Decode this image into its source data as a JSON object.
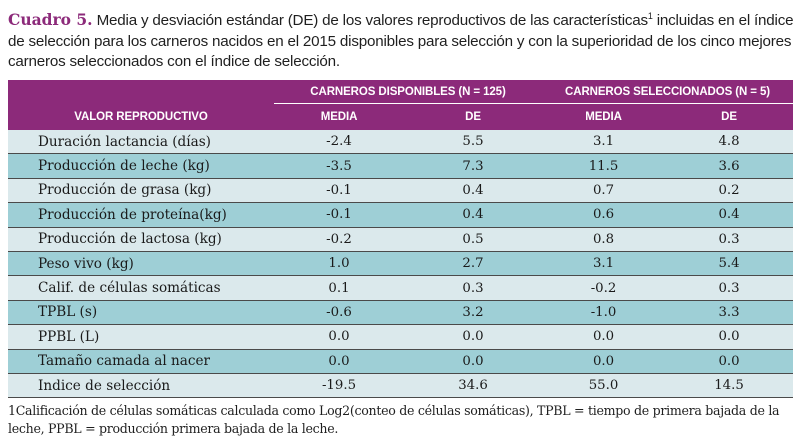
{
  "caption": {
    "label": "Cuadro 5.",
    "text_part1": " Media y desviación estándar (DE) de los valores reproductivos de las características",
    "superscript": "1",
    "text_part2": " incluidas en el índice de selección para los carneros nacidos en el 2015 disponibles para selección y con la superioridad de los cinco mejores carneros seleccionados con el índice de selección."
  },
  "table": {
    "group_headers": [
      "CARNEROS DISPONIBLES (N = 125)",
      "CARNEROS SELECCIONADOS (N = 5)"
    ],
    "column_headers": [
      "VALOR REPRODUCTIVO",
      "MEDIA",
      "DE",
      "MEDIA",
      "DE"
    ],
    "rows": [
      {
        "name": "Duración  lactancia (días)",
        "values": [
          "-2.4",
          "5.5",
          "3.1",
          "4.8"
        ]
      },
      {
        "name": "Producción de leche (kg)",
        "values": [
          "-3.5",
          "7.3",
          "11.5",
          "3.6"
        ]
      },
      {
        "name": "Producción de grasa (kg)",
        "values": [
          "-0.1",
          "0.4",
          "0.7",
          "0.2"
        ]
      },
      {
        "name": "Producción de proteína(kg)",
        "values": [
          "-0.1",
          "0.4",
          "0.6",
          "0.4"
        ]
      },
      {
        "name": "Producción de lactosa (kg)",
        "values": [
          "-0.2",
          "0.5",
          "0.8",
          "0.3"
        ]
      },
      {
        "name": "Peso vivo (kg)",
        "values": [
          "1.0",
          "2.7",
          "3.1",
          "5.4"
        ]
      },
      {
        "name": "Calif. de células somáticas",
        "values": [
          "0.1",
          "0.3",
          "-0.2",
          "0.3"
        ]
      },
      {
        "name": "TPBL (s)",
        "values": [
          "-0.6",
          "3.2",
          "-1.0",
          "3.3"
        ]
      },
      {
        "name": "PPBL (L)",
        "values": [
          "0.0",
          "0.0",
          "0.0",
          "0.0"
        ]
      },
      {
        "name": "Tamaño camada al nacer",
        "values": [
          "0.0",
          "0.0",
          "0.0",
          "0.0"
        ]
      },
      {
        "name": "Indice de selección",
        "values": [
          "-19.5",
          "34.6",
          "55.0",
          "14.5"
        ]
      }
    ]
  },
  "footnote": "1Calificación de células somáticas calculada como Log2(conteo de células somáticas), TPBL = tiempo de primera bajada de la leche, PPBL = producción primera bajada de la leche.",
  "colors": {
    "header_bg": "#8c2a7a",
    "row_light": "#dbe9ec",
    "row_dark": "#9ecfd6"
  }
}
